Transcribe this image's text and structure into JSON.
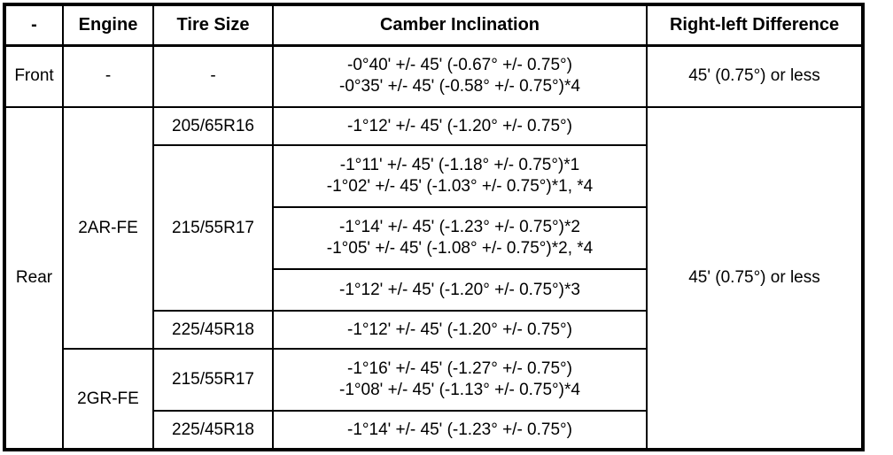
{
  "headers": [
    "-",
    "Engine",
    "Tire Size",
    "Camber Inclination",
    "Right-left Difference"
  ],
  "front": {
    "position": "Front",
    "engine": "-",
    "tire": "-",
    "camber": [
      "-0°40' +/- 45' (-0.67° +/- 0.75°)",
      "-0°35' +/- 45' (-0.58° +/- 0.75°)*4"
    ],
    "difference": "45' (0.75°) or less"
  },
  "rear": {
    "position": "Rear",
    "difference": "45' (0.75°) or less",
    "engines": [
      {
        "engine": "2AR-FE",
        "tires": [
          {
            "tire": "205/65R16",
            "camber": [
              [
                "-1°12' +/- 45' (-1.20° +/- 0.75°)"
              ]
            ]
          },
          {
            "tire": "215/55R17",
            "camber": [
              [
                "-1°11' +/- 45' (-1.18° +/- 0.75°)*1",
                "-1°02' +/- 45' (-1.03° +/- 0.75°)*1, *4"
              ],
              [
                "-1°14' +/- 45' (-1.23° +/- 0.75°)*2",
                "-1°05' +/- 45' (-1.08° +/- 0.75°)*2, *4"
              ],
              [
                "-1°12' +/- 45' (-1.20° +/- 0.75°)*3"
              ]
            ]
          },
          {
            "tire": "225/45R18",
            "camber": [
              [
                "-1°12' +/- 45' (-1.20° +/- 0.75°)"
              ]
            ]
          }
        ]
      },
      {
        "engine": "2GR-FE",
        "tires": [
          {
            "tire": "215/55R17",
            "camber": [
              [
                "-1°16' +/- 45' (-1.27° +/- 0.75°)",
                "-1°08' +/- 45' (-1.13° +/- 0.75°)*4"
              ]
            ]
          },
          {
            "tire": "225/45R18",
            "camber": [
              [
                "-1°14' +/- 45' (-1.23° +/- 0.75°)"
              ]
            ]
          }
        ]
      }
    ]
  }
}
